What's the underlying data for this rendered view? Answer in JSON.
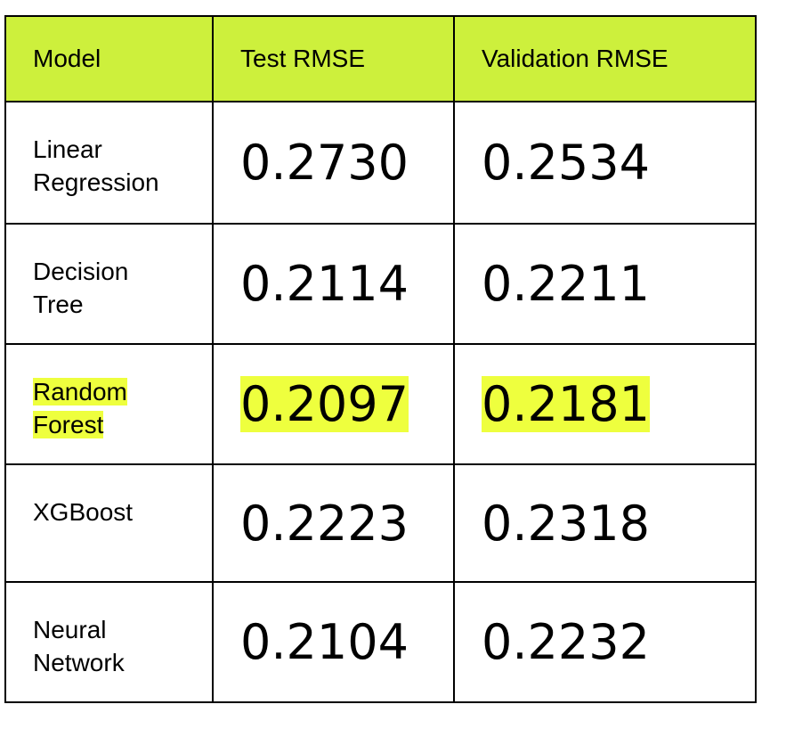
{
  "table": {
    "headers": [
      "Model",
      "Test RMSE",
      "Validation RMSE"
    ],
    "rows": [
      [
        "Linear Regression",
        "0.2730",
        "0.2534"
      ],
      [
        "Decision Tree",
        "0.2114",
        "0.2211"
      ],
      [
        "Random Forest",
        "0.2097",
        "0.2181"
      ],
      [
        "XGBoost",
        "0.2223",
        "0.2318"
      ],
      [
        "Neural Network",
        "0.2104",
        "0.2232"
      ]
    ],
    "highlight_row": 2
  }
}
